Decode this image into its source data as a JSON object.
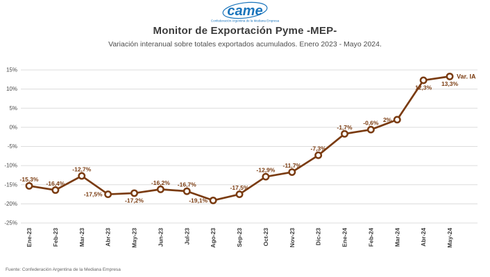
{
  "logo": {
    "text": "came",
    "tagline": "Confederación Argentina de la Mediana Empresa"
  },
  "subtitle": "Variación interanual sobre totales exportados acumulados. Enero 2023 - Mayo 2024.",
  "source": "Fuente: Confederación Argentina de la Mediana Empresa",
  "colors": {
    "line": "#7a3b10",
    "marker_fill": "#ffffff",
    "data_label": "#7a3b10",
    "grid": "#dcdcdc",
    "y_tick_text": "#4a4a4a",
    "x_tick_text": "#3a3a3a",
    "logo_blue": "#1b75bc"
  },
  "chart_data": {
    "type": "line",
    "title": "Monitor de Exportación Pyme -MEP-",
    "xlabel": "",
    "ylabel": "",
    "categories": [
      "Ene-23",
      "Feb-23",
      "Mar-23",
      "Abr-23",
      "May-23",
      "Jun-23",
      "Jul-23",
      "Ago-23",
      "Sep-23",
      "Oct-23",
      "Nov-23",
      "Dic-23",
      "Ene-24",
      "Feb-24",
      "Mar-24",
      "Abr-24",
      "May-24"
    ],
    "values": [
      -15.3,
      -16.4,
      -12.7,
      -17.5,
      -17.2,
      -16.2,
      -16.7,
      -19.1,
      -17.5,
      -12.9,
      -11.7,
      -7.3,
      -1.7,
      -0.6,
      2,
      12.3,
      13.3
    ],
    "point_labels": [
      "-15,3%",
      "-16,4%",
      "-12,7%",
      "-17,5%",
      "-17,2%",
      "-16,2%",
      "-16,7%",
      "-19,1%",
      "-17,5%",
      "-12,9%",
      "-11,7%",
      "-7,3%",
      "-1,7%",
      "-0,6%",
      "2%",
      "12,3%",
      "13,3%"
    ],
    "label_positions": [
      "above",
      "above",
      "above",
      "left",
      "below",
      "above",
      "above",
      "left",
      "above",
      "above",
      "above",
      "above",
      "above",
      "above",
      "left",
      "below",
      "below"
    ],
    "series_end_label": "Var. IA",
    "ylim": [
      -25,
      15
    ],
    "yticks": [
      15,
      10,
      5,
      0,
      -5,
      -10,
      -15,
      -20,
      -25
    ],
    "ytick_labels": [
      "15%",
      "10%",
      "5%",
      "0%",
      "-5%",
      "-10%",
      "-15%",
      "-20%",
      "-25%"
    ],
    "grid": true,
    "legend_position": "end-of-line annotation"
  }
}
